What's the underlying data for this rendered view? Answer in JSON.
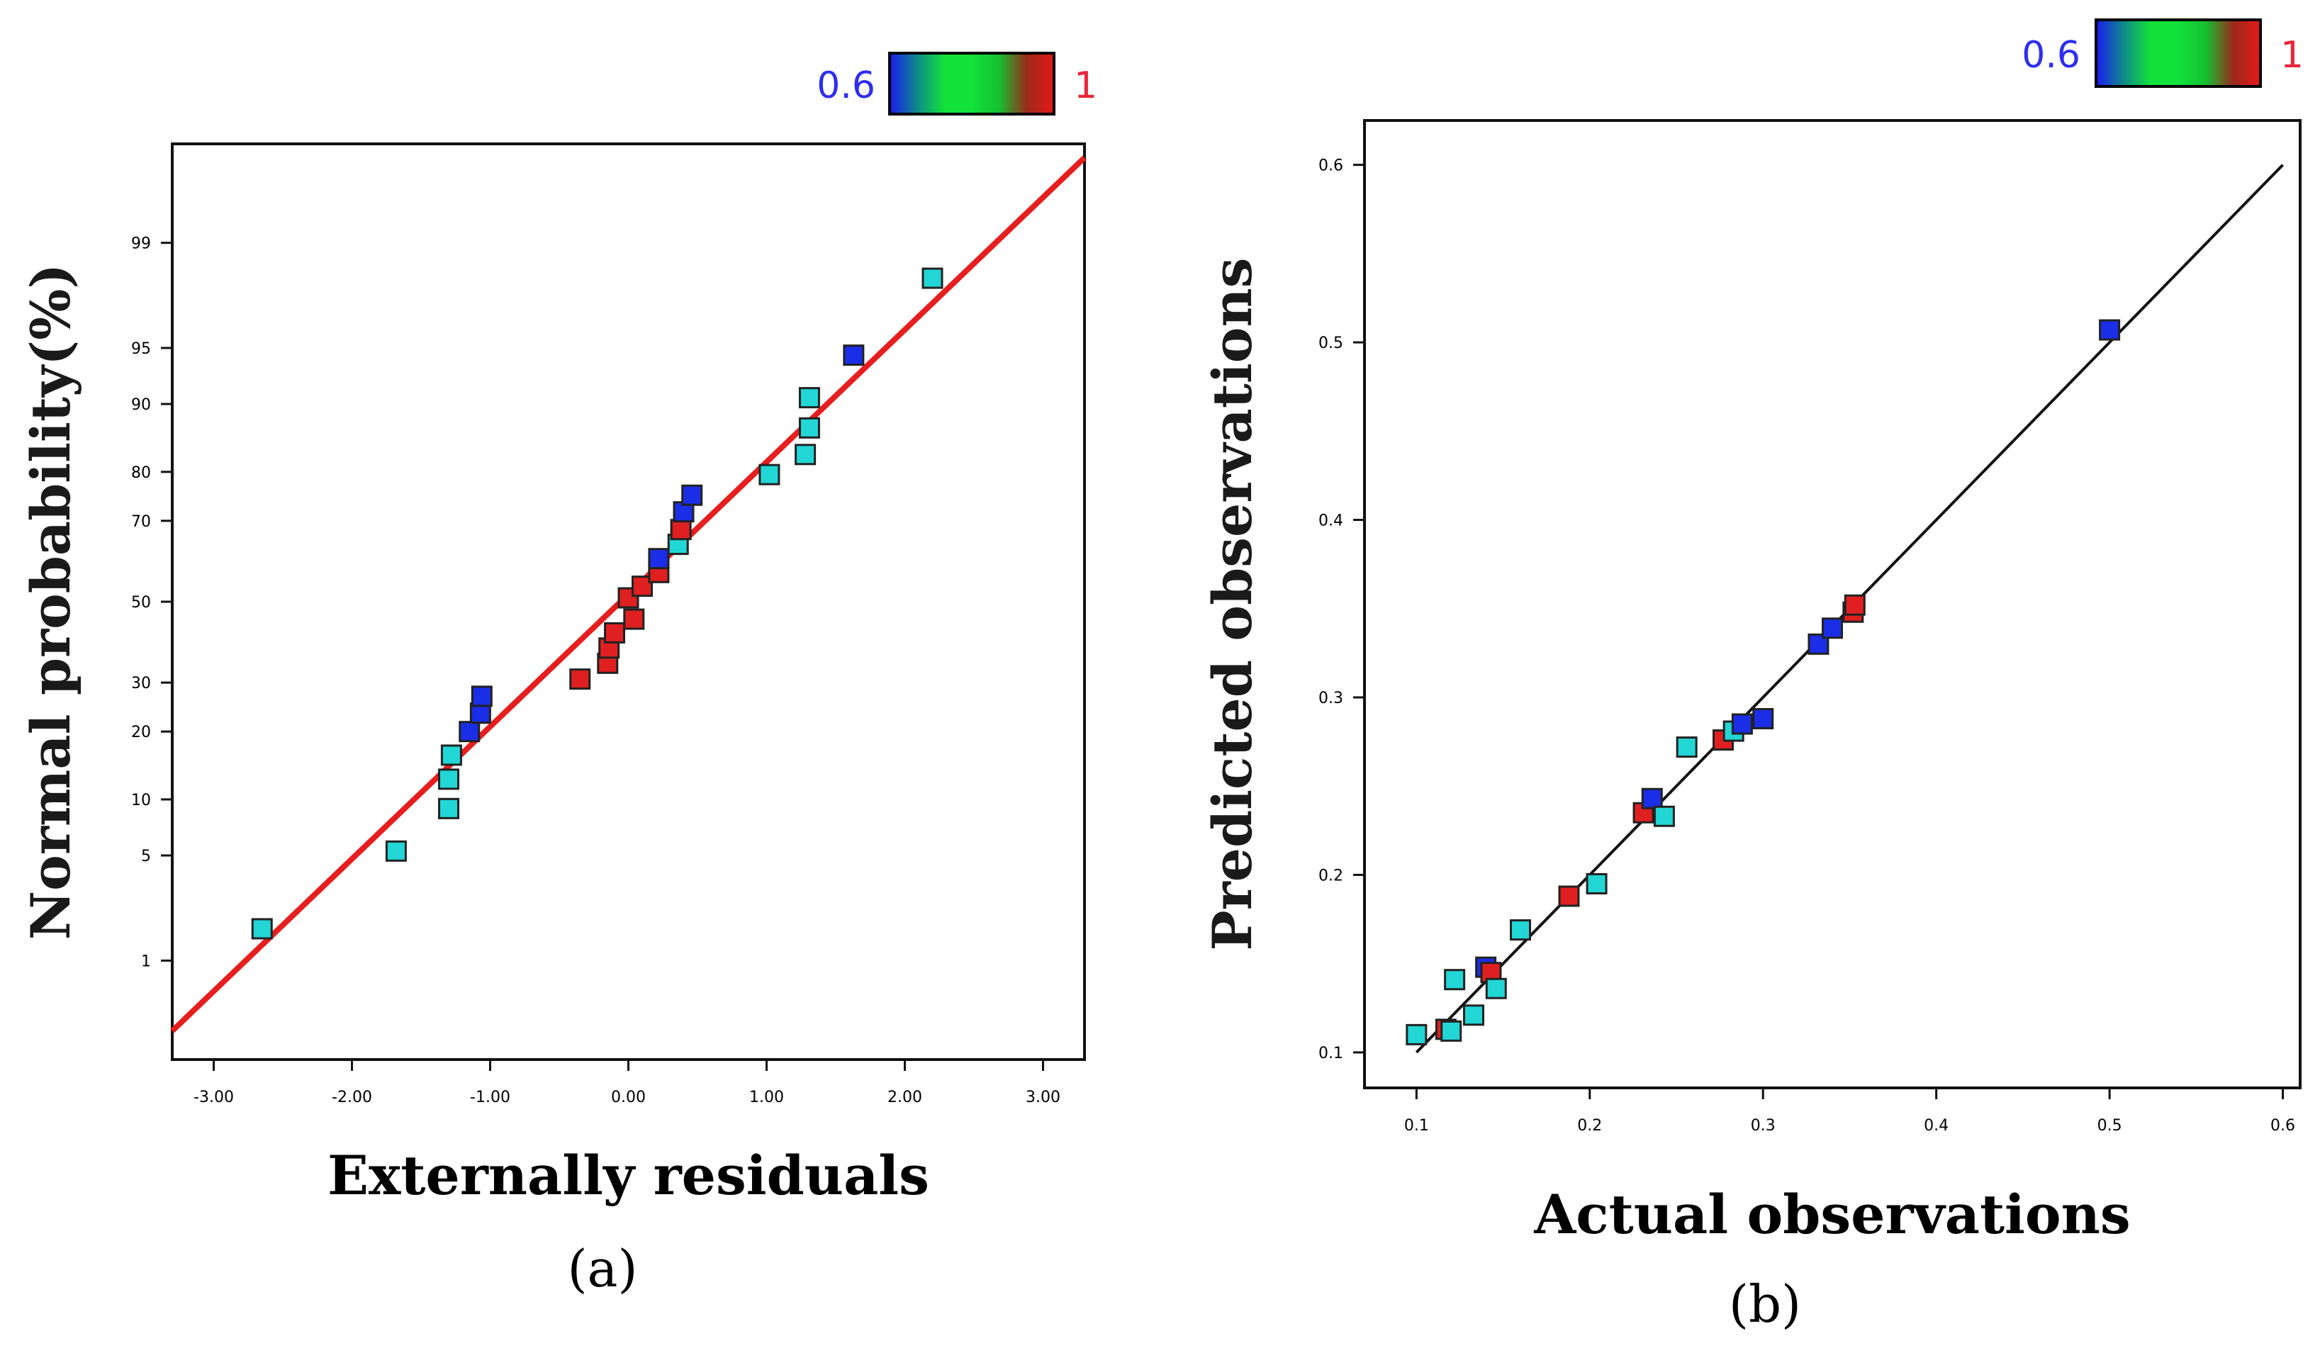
{
  "colors": {
    "axis_text": "#000000",
    "ylabel_text": "#1a1a1a",
    "fit_line_a": "#e61e1e",
    "fit_line_b": "#111111",
    "cyan": "#22d6d6",
    "blue": "#1a2ee8",
    "red": "#e02020",
    "colorbar_low": "#2e2ef0",
    "colorbar_high": "#e8263a",
    "colorbar_stops": [
      "#1a1af0",
      "#0e8a8a",
      "#12e23a",
      "#12e23a",
      "#15c030",
      "#9a2a1a",
      "#e81818"
    ]
  },
  "chart_data": [
    {
      "panel": "a",
      "type": "scatter",
      "caption": "(a)",
      "colorbar": {
        "min_label": "0.6",
        "max_label": "1"
      },
      "xlabel": "Externally residuals",
      "ylabel": "Normal probability(%)",
      "xlim": [
        -3.3,
        3.3
      ],
      "x_ticks": [
        -3,
        -2,
        -1,
        0,
        1,
        2,
        3
      ],
      "x_tick_labels": [
        "-3.00",
        "-2.00",
        "-1.00",
        "0.00",
        "1.00",
        "2.00",
        "3.00"
      ],
      "y_scale": "probit",
      "ylim": [
        0.15,
        99.85
      ],
      "y_ticks": [
        1,
        5,
        10,
        20,
        30,
        50,
        70,
        80,
        90,
        95,
        99
      ],
      "y_tick_labels": [
        "1",
        "5",
        "10",
        "20",
        "30",
        "50",
        "70",
        "80",
        "90",
        "95",
        "99"
      ],
      "fit_line": {
        "x": [
          -3.3,
          3.3
        ],
        "y": [
          0.27,
          99.8
        ]
      },
      "points": [
        {
          "x": -2.65,
          "y": 1.7,
          "color": "cyan"
        },
        {
          "x": -1.68,
          "y": 5.3,
          "color": "cyan"
        },
        {
          "x": -1.3,
          "y": 9.0,
          "color": "cyan"
        },
        {
          "x": -1.3,
          "y": 12.5,
          "color": "cyan"
        },
        {
          "x": -1.28,
          "y": 16.0,
          "color": "cyan"
        },
        {
          "x": -1.15,
          "y": 20.0,
          "color": "blue"
        },
        {
          "x": -1.07,
          "y": 23.5,
          "color": "blue"
        },
        {
          "x": -1.06,
          "y": 27.0,
          "color": "blue"
        },
        {
          "x": -0.35,
          "y": 30.8,
          "color": "red"
        },
        {
          "x": -0.15,
          "y": 34.5,
          "color": "red"
        },
        {
          "x": -0.14,
          "y": 38.2,
          "color": "red"
        },
        {
          "x": -0.1,
          "y": 42.0,
          "color": "red"
        },
        {
          "x": 0.04,
          "y": 45.5,
          "color": "red"
        },
        {
          "x": 0.0,
          "y": 51.0,
          "color": "red"
        },
        {
          "x": 0.1,
          "y": 54.0,
          "color": "red"
        },
        {
          "x": 0.22,
          "y": 57.5,
          "color": "red"
        },
        {
          "x": 0.22,
          "y": 61.0,
          "color": "blue"
        },
        {
          "x": 0.36,
          "y": 64.5,
          "color": "cyan"
        },
        {
          "x": 0.38,
          "y": 68.0,
          "color": "red"
        },
        {
          "x": 0.4,
          "y": 72.0,
          "color": "blue"
        },
        {
          "x": 0.46,
          "y": 75.5,
          "color": "blue"
        },
        {
          "x": 1.02,
          "y": 79.5,
          "color": "cyan"
        },
        {
          "x": 1.28,
          "y": 83.0,
          "color": "cyan"
        },
        {
          "x": 1.31,
          "y": 87.0,
          "color": "cyan"
        },
        {
          "x": 1.31,
          "y": 90.7,
          "color": "cyan"
        },
        {
          "x": 1.63,
          "y": 94.5,
          "color": "blue"
        },
        {
          "x": 2.2,
          "y": 98.2,
          "color": "cyan"
        }
      ]
    },
    {
      "panel": "b",
      "type": "scatter",
      "caption": "(b)",
      "colorbar": {
        "min_label": "0.6",
        "max_label": "1"
      },
      "xlabel": "Actual   observations",
      "ylabel": "Predicted observations",
      "xlim": [
        0.07,
        0.61
      ],
      "ylim": [
        0.08,
        0.625
      ],
      "x_ticks": [
        0.1,
        0.2,
        0.3,
        0.4,
        0.5,
        0.6
      ],
      "x_tick_labels": [
        "0.1",
        "0.2",
        "0.3",
        "0.4",
        "0.5",
        "0.6"
      ],
      "y_ticks": [
        0.1,
        0.2,
        0.3,
        0.4,
        0.5,
        0.6
      ],
      "y_tick_labels": [
        "0.1",
        "0.2",
        "0.3",
        "0.4",
        "0.5",
        "0.6"
      ],
      "fit_line": {
        "x": [
          0.1,
          0.6
        ],
        "y": [
          0.1,
          0.6
        ]
      },
      "points": [
        {
          "x": 0.1,
          "y": 0.11,
          "color": "cyan"
        },
        {
          "x": 0.117,
          "y": 0.113,
          "color": "red"
        },
        {
          "x": 0.12,
          "y": 0.112,
          "color": "cyan"
        },
        {
          "x": 0.122,
          "y": 0.141,
          "color": "cyan"
        },
        {
          "x": 0.133,
          "y": 0.121,
          "color": "cyan"
        },
        {
          "x": 0.14,
          "y": 0.148,
          "color": "blue"
        },
        {
          "x": 0.143,
          "y": 0.145,
          "color": "red"
        },
        {
          "x": 0.146,
          "y": 0.136,
          "color": "cyan"
        },
        {
          "x": 0.16,
          "y": 0.169,
          "color": "cyan"
        },
        {
          "x": 0.188,
          "y": 0.188,
          "color": "red"
        },
        {
          "x": 0.204,
          "y": 0.195,
          "color": "cyan"
        },
        {
          "x": 0.231,
          "y": 0.235,
          "color": "red"
        },
        {
          "x": 0.236,
          "y": 0.243,
          "color": "blue"
        },
        {
          "x": 0.243,
          "y": 0.233,
          "color": "cyan"
        },
        {
          "x": 0.256,
          "y": 0.272,
          "color": "cyan"
        },
        {
          "x": 0.277,
          "y": 0.276,
          "color": "red"
        },
        {
          "x": 0.283,
          "y": 0.281,
          "color": "cyan"
        },
        {
          "x": 0.288,
          "y": 0.285,
          "color": "blue"
        },
        {
          "x": 0.3,
          "y": 0.288,
          "color": "blue"
        },
        {
          "x": 0.332,
          "y": 0.33,
          "color": "blue"
        },
        {
          "x": 0.34,
          "y": 0.339,
          "color": "blue"
        },
        {
          "x": 0.352,
          "y": 0.348,
          "color": "red"
        },
        {
          "x": 0.353,
          "y": 0.352,
          "color": "red"
        },
        {
          "x": 0.5,
          "y": 0.507,
          "color": "blue"
        }
      ]
    }
  ]
}
